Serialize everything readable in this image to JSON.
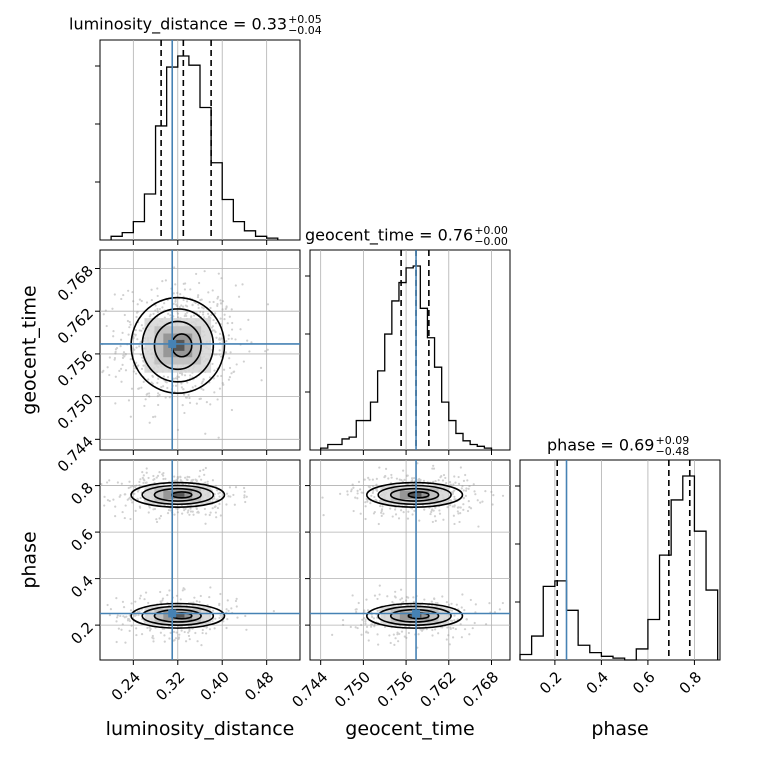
{
  "chart_data": {
    "type": "corner",
    "parameters": [
      "luminosity_distance",
      "geocent_time",
      "phase"
    ],
    "axis_labels": {
      "luminosity_distance": "luminosity_distance",
      "geocent_time": "geocent_time",
      "phase": "phase"
    },
    "ranges": {
      "luminosity_distance": [
        0.18,
        0.54
      ],
      "geocent_time": [
        0.7425,
        0.7706
      ],
      "phase": [
        0.05,
        0.91
      ]
    },
    "ticks": {
      "luminosity_distance": {
        "values": [
          0.24,
          0.32,
          0.4,
          0.48
        ],
        "labels": [
          "0.24",
          "0.32",
          "0.40",
          "0.48"
        ]
      },
      "geocent_time": {
        "values": [
          0.744,
          0.75,
          0.756,
          0.762,
          0.768
        ],
        "labels": [
          "0.744",
          "0.750",
          "0.756",
          "0.762",
          "0.768"
        ]
      },
      "phase": {
        "values": [
          0.2,
          0.4,
          0.6,
          0.8
        ],
        "labels": [
          "0.2",
          "0.4",
          "0.6",
          "0.8"
        ]
      }
    },
    "titles": [
      {
        "param": "luminosity_distance",
        "text": "luminosity_distance = 0.33",
        "plus": "+0.05",
        "minus": "−0.04"
      },
      {
        "param": "geocent_time",
        "text": "geocent_time = 0.76",
        "plus": "+0.00",
        "minus": "−0.00"
      },
      {
        "param": "phase",
        "text": "phase = 0.69",
        "plus": "+0.09",
        "minus": "−0.48"
      }
    ],
    "truths": {
      "luminosity_distance": 0.31,
      "geocent_time": 0.7574,
      "phase": 0.25
    },
    "quantiles": {
      "luminosity_distance": [
        0.29,
        0.33,
        0.38
      ],
      "geocent_time": [
        0.7553,
        0.7574,
        0.7592
      ],
      "phase": [
        0.21,
        0.69,
        0.78
      ]
    },
    "histograms": {
      "luminosity_distance": {
        "edges": [
          0.2,
          0.22,
          0.24,
          0.26,
          0.28,
          0.3,
          0.32,
          0.34,
          0.36,
          0.38,
          0.4,
          0.42,
          0.44,
          0.46,
          0.48,
          0.5
        ],
        "counts": [
          2,
          4,
          10,
          25,
          62,
          94,
          100,
          95,
          72,
          42,
          22,
          10,
          5,
          2,
          1
        ]
      },
      "geocent_time": {
        "edges": [
          0.744,
          0.745,
          0.746,
          0.747,
          0.748,
          0.749,
          0.75,
          0.751,
          0.752,
          0.753,
          0.754,
          0.755,
          0.756,
          0.757,
          0.758,
          0.759,
          0.76,
          0.761,
          0.762,
          0.763,
          0.764,
          0.765,
          0.766,
          0.767,
          0.768
        ],
        "counts": [
          1,
          3,
          3,
          6,
          7,
          16,
          16,
          26,
          43,
          63,
          81,
          91,
          99,
          100,
          77,
          61,
          45,
          26,
          16,
          9,
          5,
          3,
          2,
          1
        ]
      },
      "phase": {
        "edges": [
          0.05,
          0.1,
          0.15,
          0.2,
          0.25,
          0.3,
          0.35,
          0.4,
          0.45,
          0.5,
          0.55,
          0.6,
          0.65,
          0.7,
          0.75,
          0.8,
          0.85,
          0.9
        ],
        "counts": [
          3,
          13,
          40,
          43,
          27,
          8,
          4,
          2,
          1,
          0,
          6,
          22,
          57,
          87,
          100,
          70,
          38
        ]
      }
    },
    "contour_means": {
      "luminosity_distance": 0.32,
      "geocent_time": 0.7572,
      "phase_modes": [
        0.76,
        0.24
      ]
    }
  }
}
